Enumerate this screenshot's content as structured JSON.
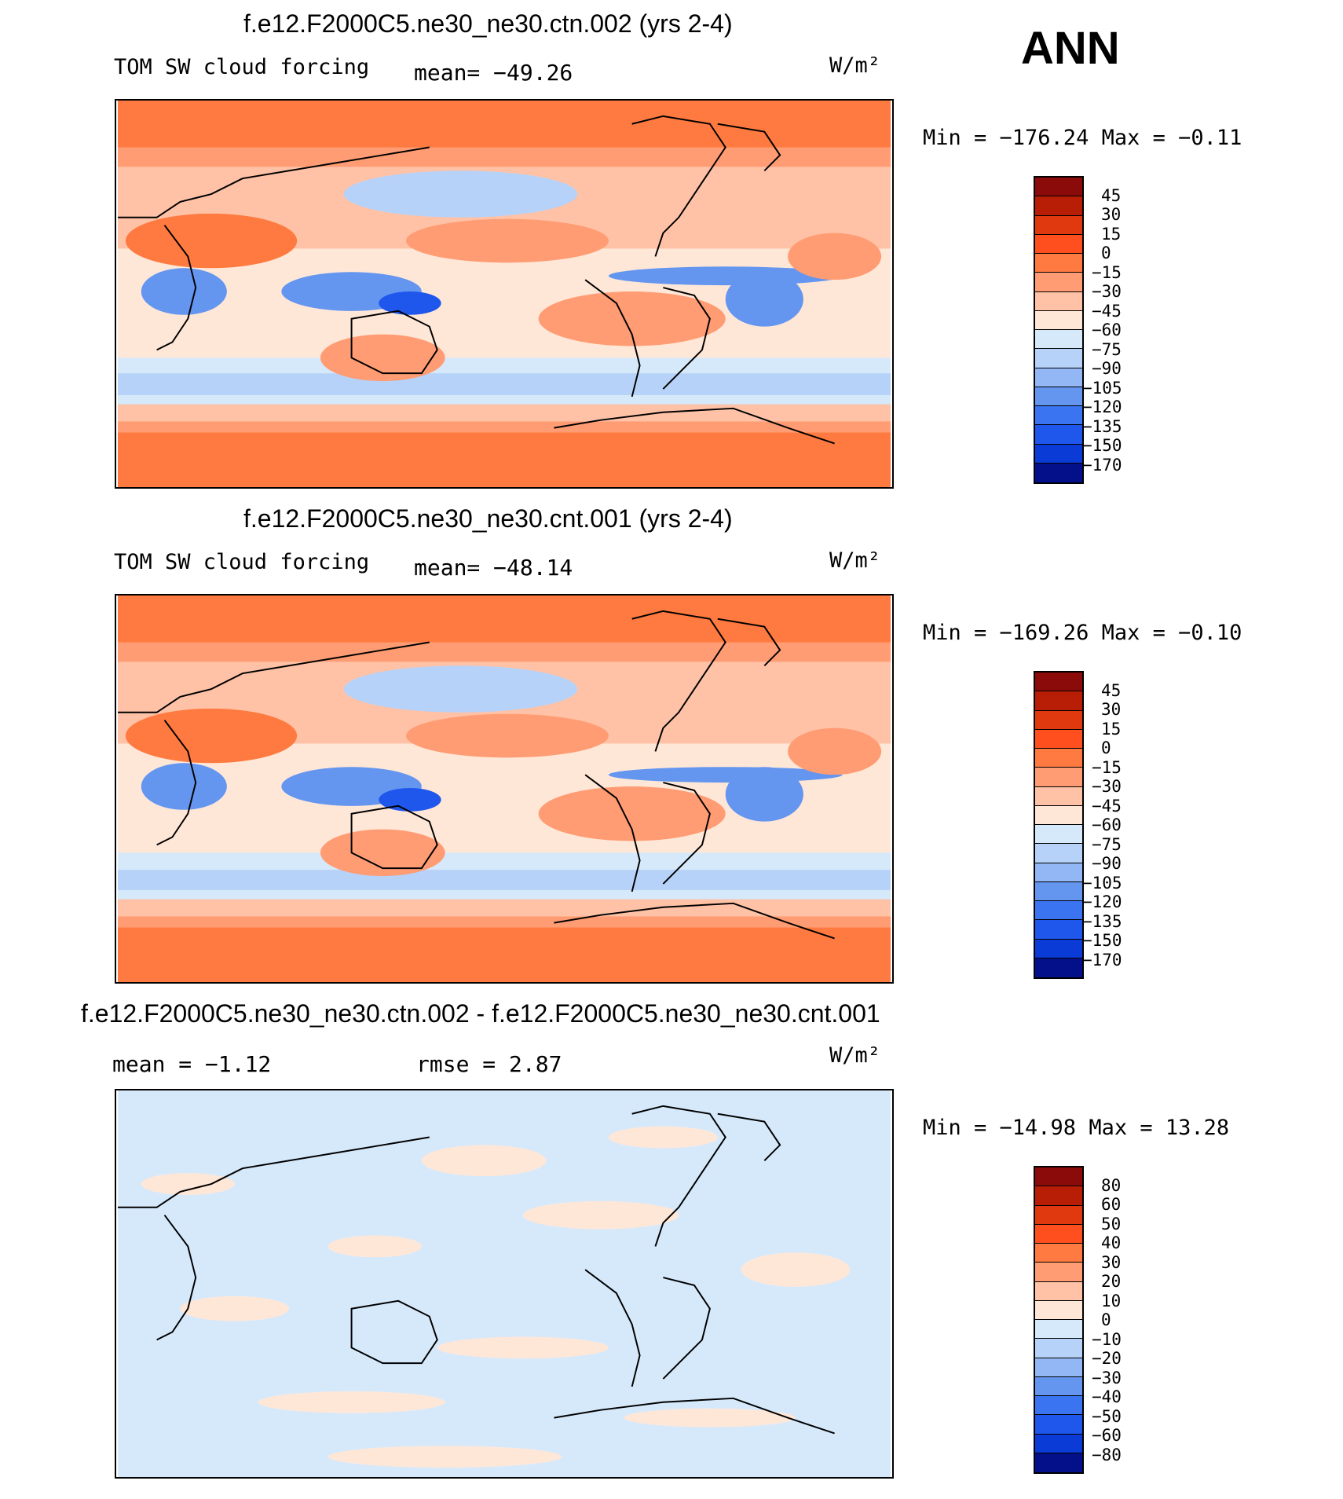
{
  "figure_label": "ANN",
  "chart_data": [
    {
      "type": "heatmap",
      "title": "f.e12.F2000C5.ne30_ne30.ctn.002 (yrs 2-4)",
      "variable": "TOM SW cloud forcing",
      "mean_label": "mean= −49.26",
      "units": "W/m²",
      "min_max_label": "Min = −176.24 Max =  −0.11",
      "min": -176.24,
      "max": -0.11,
      "mean": -49.26,
      "colorbar_levels": [
        "45",
        "30",
        "15",
        "0",
        "−15",
        "−30",
        "−45",
        "−60",
        "−75",
        "−90",
        "−105",
        "−120",
        "−135",
        "−150",
        "−170"
      ],
      "colorbar_colors": [
        "#8b0b0b",
        "#b81e06",
        "#e0390f",
        "#ff4f1f",
        "#ff7a40",
        "#ff9c73",
        "#ffc2a6",
        "#ffe7d8",
        "#d6e9fb",
        "#b7d2f8",
        "#92b7f4",
        "#6496f0",
        "#3a74f0",
        "#1f56ec",
        "#0a3bd6",
        "#04108a"
      ]
    },
    {
      "type": "heatmap",
      "title": "f.e12.F2000C5.ne30_ne30.cnt.001 (yrs 2-4)",
      "variable": "TOM SW cloud forcing",
      "mean_label": "mean= −48.14",
      "units": "W/m²",
      "min_max_label": "Min = −169.26 Max =  −0.10",
      "min": -169.26,
      "max": -0.1,
      "mean": -48.14,
      "colorbar_levels": [
        "45",
        "30",
        "15",
        "0",
        "−15",
        "−30",
        "−45",
        "−60",
        "−75",
        "−90",
        "−105",
        "−120",
        "−135",
        "−150",
        "−170"
      ],
      "colorbar_colors": [
        "#8b0b0b",
        "#b81e06",
        "#e0390f",
        "#ff4f1f",
        "#ff7a40",
        "#ff9c73",
        "#ffc2a6",
        "#ffe7d8",
        "#d6e9fb",
        "#b7d2f8",
        "#92b7f4",
        "#6496f0",
        "#3a74f0",
        "#1f56ec",
        "#0a3bd6",
        "#04108a"
      ]
    },
    {
      "type": "heatmap",
      "title": "f.e12.F2000C5.ne30_ne30.ctn.002 - f.e12.F2000C5.ne30_ne30.cnt.001",
      "mean_label": "mean =  −1.12",
      "rmse_label": "rmse =   2.87",
      "units": "W/m²",
      "min_max_label": "Min = −14.98 Max =  13.28",
      "min": -14.98,
      "max": 13.28,
      "mean": -1.12,
      "rmse": 2.87,
      "colorbar_levels": [
        "80",
        "60",
        "50",
        "40",
        "30",
        "20",
        "10",
        "0",
        "−10",
        "−20",
        "−30",
        "−40",
        "−50",
        "−60",
        "−80"
      ],
      "colorbar_colors": [
        "#8b0b0b",
        "#b81e06",
        "#e0390f",
        "#ff4f1f",
        "#ff7a40",
        "#ff9c73",
        "#ffc2a6",
        "#ffe7d8",
        "#d6e9fb",
        "#b7d2f8",
        "#92b7f4",
        "#6496f0",
        "#3a74f0",
        "#1f56ec",
        "#0a3bd6",
        "#04108a"
      ]
    }
  ]
}
